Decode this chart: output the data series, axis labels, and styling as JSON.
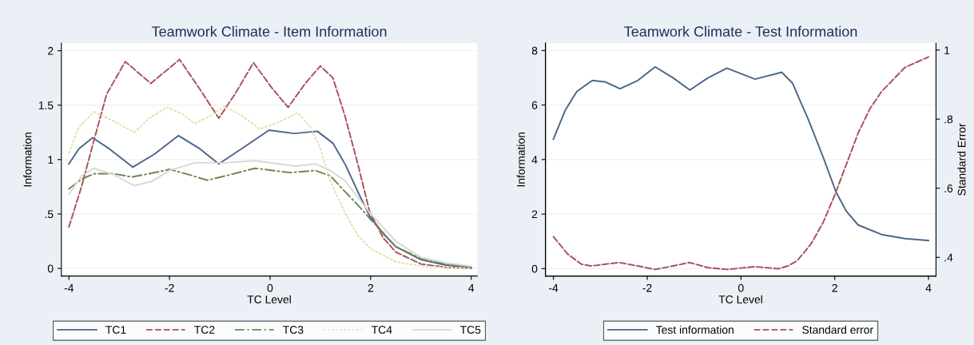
{
  "chart_data": [
    {
      "type": "line",
      "title": "Teamwork Climate - Item Information",
      "xlabel": "TC Level",
      "ylabel": "Information",
      "xlim": [
        -4.15,
        4.12
      ],
      "xticks": [
        -4,
        -2,
        0,
        2,
        4
      ],
      "ylim": [
        -0.07,
        2.07
      ],
      "yticks": [
        0,
        {
          "value": 0.5,
          "label": ".5"
        },
        1,
        1.5,
        2
      ],
      "grid": "y",
      "legend": "bottom",
      "series": [
        {
          "name": "TC1",
          "color": "#4a6788",
          "line_style": "solid",
          "x": [
            -4,
            -3.8,
            -3.53,
            -3.2,
            -2.73,
            -2.3,
            -1.82,
            -1.4,
            -1.02,
            -0.5,
            -0.02,
            0.48,
            0.94,
            1.25,
            1.5,
            1.75,
            1.98,
            2.25,
            2.5,
            3,
            3.5,
            4
          ],
          "values": [
            0.96,
            1.1,
            1.2,
            1.1,
            0.93,
            1.05,
            1.22,
            1.1,
            0.96,
            1.12,
            1.27,
            1.24,
            1.26,
            1.15,
            0.95,
            0.7,
            0.48,
            0.32,
            0.2,
            0.08,
            0.03,
            0.01
          ]
        },
        {
          "name": "TC2",
          "color": "#a8505c",
          "line_style": "dashed",
          "x": [
            -4,
            -3.75,
            -3.5,
            -3.25,
            -2.88,
            -2.37,
            -1.8,
            -1.4,
            -1.02,
            -0.7,
            -0.33,
            0.05,
            0.36,
            0.7,
            1.0,
            1.25,
            1.49,
            1.75,
            1.98,
            2.25,
            2.5,
            3,
            3.5,
            4
          ],
          "values": [
            0.38,
            0.75,
            1.18,
            1.6,
            1.9,
            1.7,
            1.92,
            1.65,
            1.38,
            1.6,
            1.89,
            1.65,
            1.48,
            1.7,
            1.86,
            1.75,
            1.4,
            0.95,
            0.52,
            0.28,
            0.15,
            0.04,
            0.01,
            0.0
          ]
        },
        {
          "name": "TC3",
          "color": "#6b8a4a",
          "line_style": "dashdot",
          "x": [
            -4,
            -3.75,
            -3.5,
            -3.1,
            -2.75,
            -2.4,
            -2.0,
            -1.6,
            -1.25,
            -0.8,
            -0.3,
            0.05,
            0.4,
            0.9,
            1.2,
            1.5,
            1.75,
            2.0,
            2.5,
            3,
            3.5,
            4
          ],
          "values": [
            0.73,
            0.82,
            0.87,
            0.87,
            0.84,
            0.87,
            0.91,
            0.86,
            0.81,
            0.86,
            0.92,
            0.9,
            0.88,
            0.9,
            0.85,
            0.7,
            0.58,
            0.45,
            0.2,
            0.09,
            0.04,
            0.01
          ]
        },
        {
          "name": "TC4",
          "color": "#e6dfae",
          "line_style": "dotted",
          "x": [
            -4,
            -3.8,
            -3.5,
            -3.1,
            -2.7,
            -2.4,
            -2.05,
            -1.75,
            -1.5,
            -1.2,
            -0.9,
            -0.55,
            -0.2,
            0.2,
            0.55,
            0.8,
            1.0,
            1.2,
            1.5,
            1.75,
            2.0,
            2.5,
            3,
            3.5,
            4
          ],
          "values": [
            1.06,
            1.3,
            1.44,
            1.35,
            1.25,
            1.38,
            1.48,
            1.42,
            1.33,
            1.4,
            1.49,
            1.4,
            1.28,
            1.35,
            1.43,
            1.3,
            1.1,
            0.8,
            0.5,
            0.3,
            0.18,
            0.06,
            0.02,
            0.01,
            0.0
          ]
        },
        {
          "name": "TC5",
          "color": "#d8d8d8",
          "line_style": "solid",
          "x": [
            -4,
            -3.75,
            -3.5,
            -3.1,
            -2.7,
            -2.35,
            -2.0,
            -1.5,
            -0.9,
            -0.3,
            0.5,
            0.9,
            1.2,
            1.5,
            2.0,
            2.5,
            3,
            3.5,
            4
          ],
          "values": [
            0.68,
            0.85,
            0.92,
            0.86,
            0.76,
            0.8,
            0.9,
            0.97,
            0.97,
            0.99,
            0.94,
            0.96,
            0.9,
            0.8,
            0.5,
            0.25,
            0.1,
            0.05,
            0.02
          ]
        }
      ]
    },
    {
      "type": "line",
      "title": "Teamwork Climate - Test Information",
      "xlabel": "TC Level",
      "ylabel": "Information",
      "y2label": "Standard Error",
      "xlim": [
        -4.17,
        4.16
      ],
      "xticks": [
        -4,
        -2,
        0,
        2,
        4
      ],
      "ylim": [
        -0.27,
        8.27
      ],
      "yticks": [
        0,
        2,
        4,
        6,
        8
      ],
      "y2lim": [
        0.346,
        1.02
      ],
      "y2ticks": [
        {
          "value": 0.4,
          "label": ".4"
        },
        {
          "value": 0.6,
          "label": ".6"
        },
        {
          "value": 0.8,
          "label": ".8"
        },
        1
      ],
      "grid": "y",
      "legend": "bottom",
      "series": [
        {
          "name": "Test information",
          "color": "#4a6788",
          "line_style": "solid",
          "x": [
            -4,
            -3.75,
            -3.5,
            -3.17,
            -2.9,
            -2.58,
            -2.2,
            -1.83,
            -1.45,
            -1.09,
            -0.7,
            -0.3,
            0.3,
            0.87,
            1.1,
            1.25,
            1.43,
            1.75,
            2.03,
            2.25,
            2.5,
            3,
            3.5,
            4
          ],
          "values": [
            4.75,
            5.8,
            6.5,
            6.9,
            6.85,
            6.6,
            6.9,
            7.4,
            7.0,
            6.55,
            7.0,
            7.35,
            6.95,
            7.2,
            6.8,
            6.2,
            5.5,
            4.1,
            2.8,
            2.1,
            1.6,
            1.25,
            1.1,
            1.03
          ]
        },
        {
          "name": "Standard error",
          "color": "#a8505c",
          "line_style": "dashed",
          "axis": "y2",
          "x": [
            -4,
            -3.7,
            -3.4,
            -3.2,
            -2.6,
            -2.2,
            -1.83,
            -1.45,
            -1.1,
            -0.7,
            -0.3,
            0.3,
            0.8,
            1.0,
            1.2,
            1.5,
            1.75,
            2.0,
            2.25,
            2.5,
            2.75,
            3,
            3.5,
            4
          ],
          "values": [
            0.46,
            0.41,
            0.38,
            0.375,
            0.385,
            0.375,
            0.365,
            0.375,
            0.385,
            0.37,
            0.365,
            0.373,
            0.367,
            0.375,
            0.39,
            0.44,
            0.5,
            0.58,
            0.67,
            0.76,
            0.83,
            0.88,
            0.95,
            0.98
          ]
        }
      ]
    }
  ]
}
